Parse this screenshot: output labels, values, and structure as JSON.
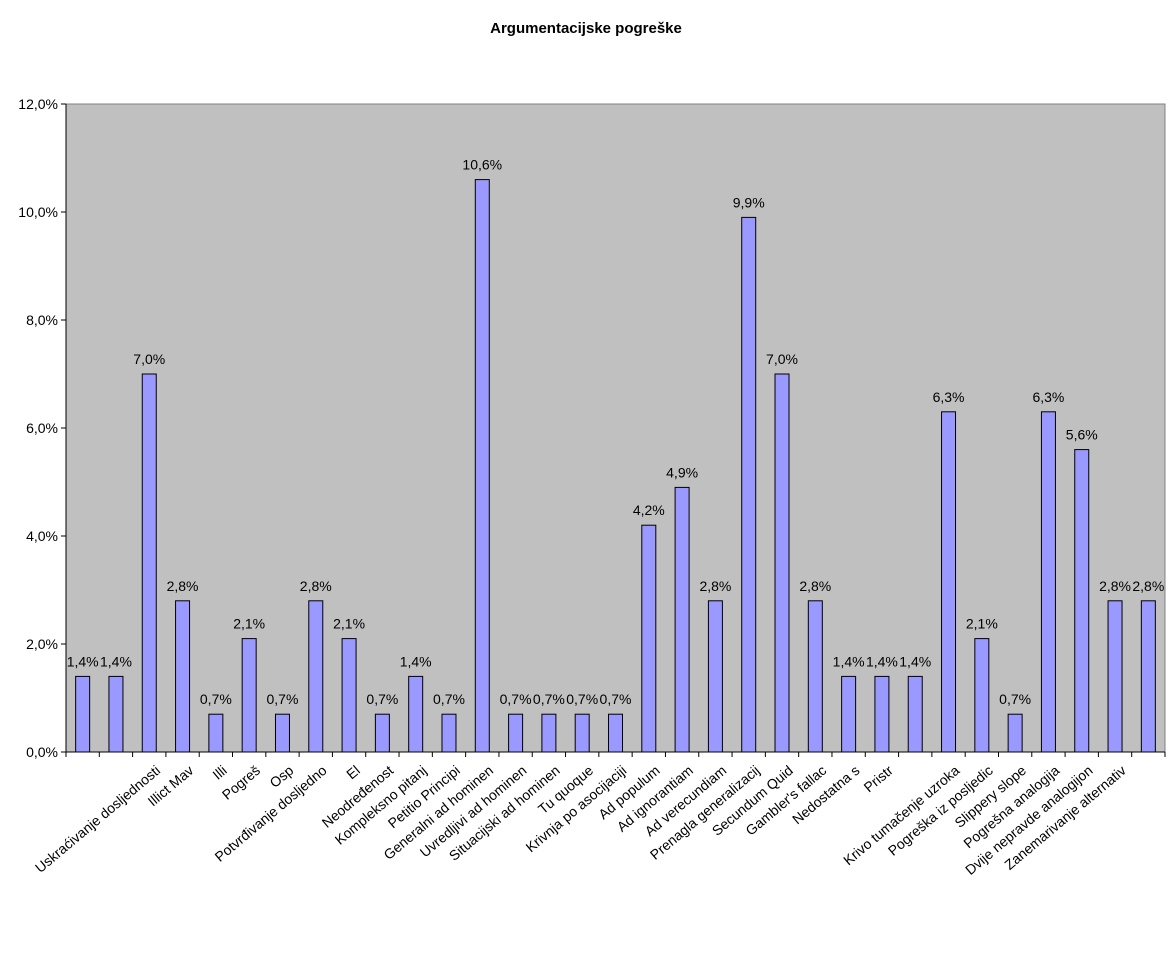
{
  "chart_data": {
    "type": "bar",
    "title": "Argumentacijske pogreške",
    "categories": [
      null,
      null,
      "Uskraćivanje dosljednosti",
      "Illict Mav",
      "Illi",
      "Pogreš",
      "Osp",
      "Potvrđivanje dosljedno",
      "El",
      "Neodređenost",
      "Kompleksno pitanj",
      "Petitio Principi",
      "Generalni ad hominen",
      "Uvredljivi ad hominen",
      "Situacijski ad hominen",
      "Tu quoque",
      "Krivnja po asocijaciji",
      "Ad populum",
      "Ad ignorantiam",
      "Ad verecundiam",
      "Prenagla generalizacij",
      "Secundum Quid",
      "Gambler's fallac",
      "Nedostatna s",
      "Pristr",
      null,
      "Krivo tumačenje uzroka",
      "Pogreška iz posljedic",
      "Slippery slope",
      "Pogrešna analogija",
      "Dvije nepravde analogijon",
      "Zanemarivanje alternativ",
      null
    ],
    "values": [
      1.4,
      1.4,
      7.0,
      2.8,
      0.7,
      2.1,
      0.7,
      2.8,
      2.1,
      0.7,
      1.4,
      0.7,
      10.6,
      0.7,
      0.7,
      0.7,
      0.7,
      4.2,
      4.9,
      2.8,
      9.9,
      7.0,
      2.8,
      1.4,
      1.4,
      1.4,
      6.3,
      2.1,
      0.7,
      6.3,
      5.6,
      2.8,
      2.8
    ],
    "value_labels": [
      "1,4%",
      "1,4%",
      "7,0%",
      "2,8%",
      "0,7%",
      "2,1%",
      "0,7%",
      "2,8%",
      "2,1%",
      "0,7%",
      "1,4%",
      "0,7%",
      "10,6%",
      "0,7%",
      "0,7%",
      "0,7%",
      "0,7%",
      "4,2%",
      "4,9%",
      "2,8%",
      "9,9%",
      "7,0%",
      "2,8%",
      "1,4%",
      "1,4%",
      "1,4%",
      "6,3%",
      "2,1%",
      "0,7%",
      "6,3%",
      "5,6%",
      "2,8%",
      "2,8%"
    ],
    "color": "#9999ff",
    "ylim": [
      0,
      12
    ],
    "yticks": [
      {
        "value": 0,
        "label": "0,0%"
      },
      {
        "value": 2,
        "label": "2,0%"
      },
      {
        "value": 4,
        "label": "4,0%"
      },
      {
        "value": 6,
        "label": "6,0%"
      },
      {
        "value": 8,
        "label": "8,0%"
      },
      {
        "value": 10,
        "label": "10,0%"
      },
      {
        "value": 12,
        "label": "12,0%"
      }
    ]
  }
}
